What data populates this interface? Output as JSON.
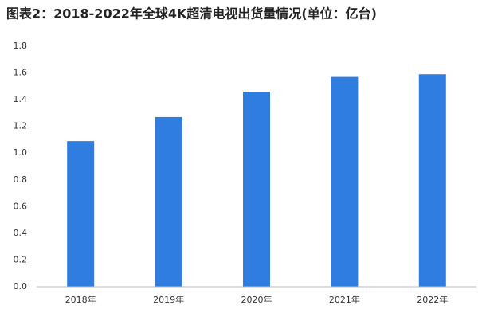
{
  "chart_data": {
    "type": "bar",
    "title": "图表2：2018-2022年全球4K超清电视出货量情况(单位：亿台)",
    "categories": [
      "2018年",
      "2019年",
      "2020年",
      "2021年",
      "2022年"
    ],
    "values": [
      1.09,
      1.27,
      1.46,
      1.57,
      1.59
    ],
    "color": "#2f7de1",
    "ylim": [
      0,
      1.8
    ],
    "yticks": [
      {
        "value": 0,
        "label": "0.0"
      },
      0.2,
      0.4,
      0.6,
      0.8,
      {
        "value": 1,
        "label": "1.0"
      },
      1.2,
      1.4,
      1.6,
      1.8
    ],
    "grid": false
  }
}
